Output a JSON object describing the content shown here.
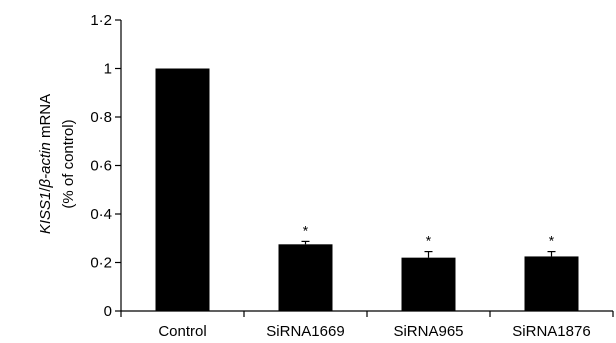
{
  "chart_data": {
    "type": "bar",
    "categories": [
      "Control",
      "SiRNA1669",
      "SiRNA965",
      "SiRNA1876"
    ],
    "values": [
      1.0,
      0.275,
      0.22,
      0.225
    ],
    "errors": [
      0,
      0.012,
      0.025,
      0.02
    ],
    "significance": [
      "",
      "*",
      "*",
      "*"
    ],
    "ylabel_italic_1": "KISS1",
    "ylabel_sep": "/",
    "ylabel_italic_2": "β-actin",
    "ylabel_plain": " mRNA",
    "ylabel_line2": "(% of control)",
    "ylim": [
      0,
      1.2
    ],
    "yticks": [
      0,
      0.2,
      0.4,
      0.6,
      0.8,
      1.0,
      1.2
    ],
    "ytick_labels": [
      "0",
      "0·2",
      "0·4",
      "0·6",
      "0·8",
      "1",
      "1·2"
    ],
    "bar_color": "#000000",
    "grid": false
  }
}
